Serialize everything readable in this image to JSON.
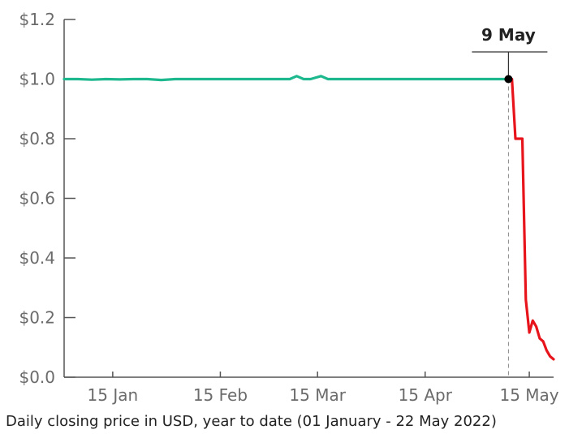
{
  "caption": "Daily closing price in USD, year to date (01 January - 22 May 2022)",
  "chart_data": {
    "type": "line",
    "title": "",
    "xlabel": "",
    "ylabel": "",
    "ylim": [
      0,
      1.2
    ],
    "xlim": [
      "2022-01-01",
      "2022-05-22"
    ],
    "y_ticks": [
      {
        "value": 0.0,
        "label": "$0.0"
      },
      {
        "value": 0.2,
        "label": "$0.2"
      },
      {
        "value": 0.4,
        "label": "$0.4"
      },
      {
        "value": 0.6,
        "label": "$0.6"
      },
      {
        "value": 0.8,
        "label": "$0.8"
      },
      {
        "value": 1.0,
        "label": "$1.0"
      },
      {
        "value": 1.2,
        "label": "$1.2"
      }
    ],
    "x_ticks": [
      {
        "date": "2022-01-15",
        "label": "15 Jan"
      },
      {
        "date": "2022-02-15",
        "label": "15 Feb"
      },
      {
        "date": "2022-03-15",
        "label": "15 Mar"
      },
      {
        "date": "2022-04-15",
        "label": "15 Apr"
      },
      {
        "date": "2022-05-15",
        "label": "15 May"
      }
    ],
    "grid": false,
    "legend": "none",
    "series": [
      {
        "color": "#1db88e",
        "points": [
          [
            "2022-01-01",
            1.0
          ],
          [
            "2022-01-05",
            1.0
          ],
          [
            "2022-01-09",
            0.998
          ],
          [
            "2022-01-13",
            1.0
          ],
          [
            "2022-01-17",
            0.999
          ],
          [
            "2022-01-21",
            1.0
          ],
          [
            "2022-01-25",
            1.0
          ],
          [
            "2022-01-29",
            0.997
          ],
          [
            "2022-02-02",
            1.0
          ],
          [
            "2022-02-10",
            1.0
          ],
          [
            "2022-02-20",
            1.0
          ],
          [
            "2022-03-01",
            1.0
          ],
          [
            "2022-03-07",
            1.0
          ],
          [
            "2022-03-09",
            1.01
          ],
          [
            "2022-03-11",
            1.0
          ],
          [
            "2022-03-13",
            1.0
          ],
          [
            "2022-03-16",
            1.01
          ],
          [
            "2022-03-18",
            1.0
          ],
          [
            "2022-03-25",
            1.0
          ],
          [
            "2022-04-05",
            1.0
          ],
          [
            "2022-04-15",
            1.0
          ],
          [
            "2022-04-25",
            1.0
          ],
          [
            "2022-05-05",
            1.0
          ],
          [
            "2022-05-09",
            1.0
          ]
        ]
      },
      {
        "color": "#e8141b",
        "points": [
          [
            "2022-05-09",
            1.0
          ],
          [
            "2022-05-10",
            1.0
          ],
          [
            "2022-05-11",
            0.8
          ],
          [
            "2022-05-12",
            0.8
          ],
          [
            "2022-05-13",
            0.8
          ],
          [
            "2022-05-14",
            0.26
          ],
          [
            "2022-05-15",
            0.15
          ],
          [
            "2022-05-16",
            0.19
          ],
          [
            "2022-05-17",
            0.17
          ],
          [
            "2022-05-18",
            0.13
          ],
          [
            "2022-05-19",
            0.12
          ],
          [
            "2022-05-20",
            0.09
          ],
          [
            "2022-05-21",
            0.07
          ],
          [
            "2022-05-22",
            0.06
          ]
        ]
      }
    ],
    "annotation": {
      "label": "9 May",
      "date": "2022-05-09",
      "value": 1.0,
      "line_style": "dashed"
    }
  }
}
